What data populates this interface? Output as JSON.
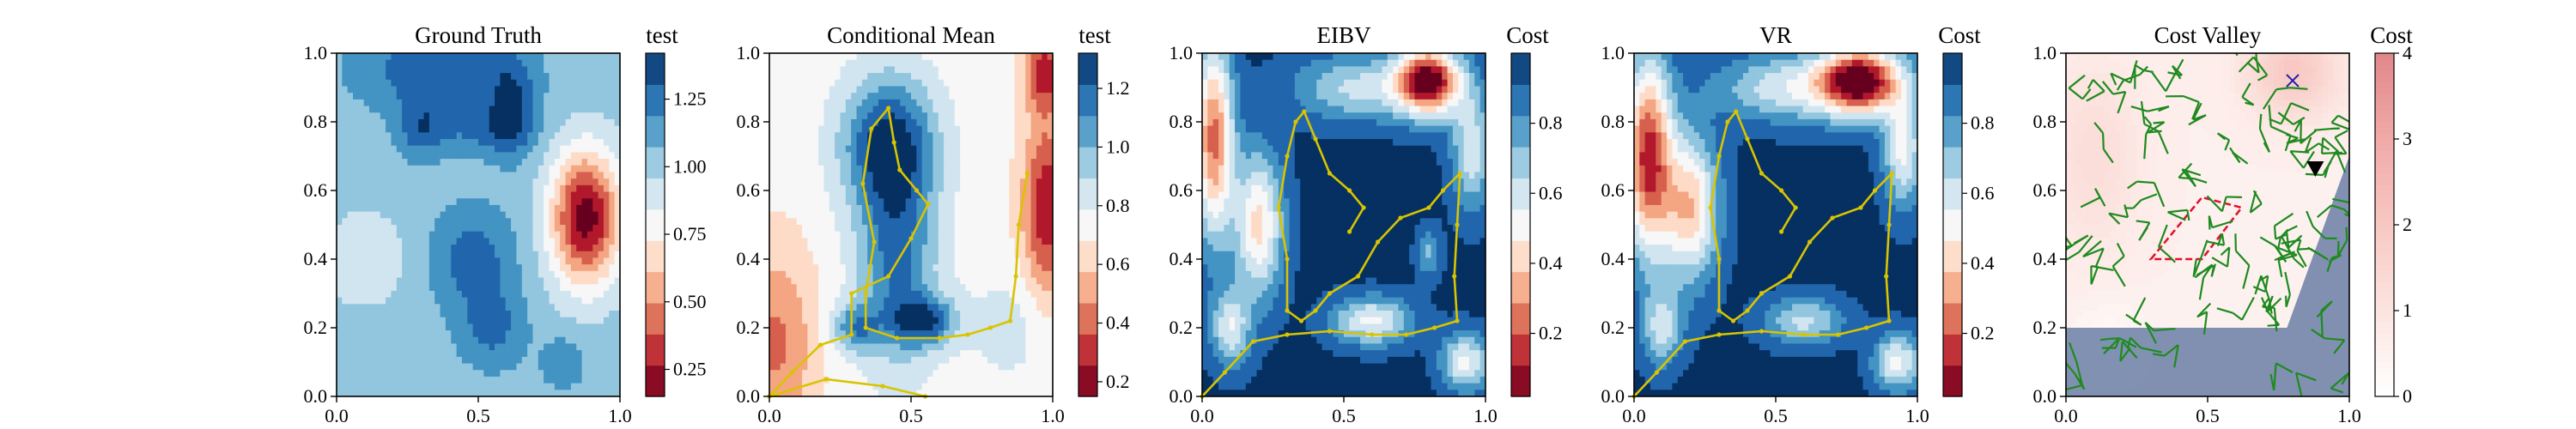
{
  "figure": {
    "panel_count": 5
  },
  "chart_data": [
    {
      "type": "heatmap",
      "title": "Ground Truth",
      "colorbar_label": "test",
      "colormap": "RdBu",
      "xlim": [
        0,
        1
      ],
      "ylim": [
        0,
        1
      ],
      "xticks": [
        "0.0",
        "0.5",
        "1.0"
      ],
      "yticks": [
        "0.0",
        "0.2",
        "0.4",
        "0.6",
        "0.8",
        "1.0"
      ],
      "colorbar_range": [
        0.15,
        1.42
      ],
      "colorbar_ticks": [
        "0.25",
        "0.50",
        "0.75",
        "1.00",
        "1.25"
      ],
      "colorbar_tick_values": [
        0.25,
        0.5,
        0.75,
        1.0,
        1.25
      ],
      "field": {
        "base": 1.05,
        "blobs": [
          {
            "cx": 0.88,
            "cy": 0.52,
            "sx": 0.09,
            "sy": 0.14,
            "amp": -0.9
          },
          {
            "cx": 0.35,
            "cy": 0.95,
            "sx": 0.18,
            "sy": 0.08,
            "amp": 0.3
          },
          {
            "cx": 0.62,
            "cy": 0.85,
            "sx": 0.06,
            "sy": 0.1,
            "amp": 0.3
          },
          {
            "cx": 0.48,
            "cy": 0.4,
            "sx": 0.1,
            "sy": 0.1,
            "amp": 0.25
          },
          {
            "cx": 0.1,
            "cy": 0.4,
            "sx": 0.1,
            "sy": 0.1,
            "amp": -0.2
          },
          {
            "cx": 0.3,
            "cy": 0.78,
            "sx": 0.06,
            "sy": 0.06,
            "amp": 0.25
          },
          {
            "cx": 0.52,
            "cy": 0.78,
            "sx": 0.12,
            "sy": 0.05,
            "amp": 0.2
          },
          {
            "cx": 0.55,
            "cy": 0.2,
            "sx": 0.08,
            "sy": 0.08,
            "amp": 0.22
          },
          {
            "cx": 0.8,
            "cy": 0.1,
            "sx": 0.05,
            "sy": 0.05,
            "amp": 0.18
          }
        ]
      },
      "paths": []
    },
    {
      "type": "heatmap",
      "title": "Conditional Mean",
      "colorbar_label": "test",
      "colormap": "RdBu",
      "xlim": [
        0,
        1
      ],
      "ylim": [
        0,
        1
      ],
      "xticks": [
        "0.0",
        "0.5",
        "1.0"
      ],
      "yticks": [
        "0.0",
        "0.2",
        "0.4",
        "0.6",
        "0.8",
        "1.0"
      ],
      "colorbar_range": [
        0.15,
        1.32
      ],
      "colorbar_ticks": [
        "0.2",
        "0.4",
        "0.6",
        "0.8",
        "1.0",
        "1.2"
      ],
      "colorbar_tick_values": [
        0.2,
        0.4,
        0.6,
        0.8,
        1.0,
        1.2
      ],
      "field": {
        "base": 0.72,
        "blobs": [
          {
            "cx": 0.42,
            "cy": 0.74,
            "sx": 0.12,
            "sy": 0.14,
            "amp": 0.55
          },
          {
            "cx": 0.45,
            "cy": 0.4,
            "sx": 0.1,
            "sy": 0.22,
            "amp": 0.45
          },
          {
            "cx": 0.55,
            "cy": 0.22,
            "sx": 0.08,
            "sy": 0.05,
            "amp": 0.45
          },
          {
            "cx": 0.3,
            "cy": 0.2,
            "sx": 0.06,
            "sy": 0.05,
            "amp": 0.35
          },
          {
            "cx": 0.98,
            "cy": 0.55,
            "sx": 0.06,
            "sy": 0.18,
            "amp": -0.5
          },
          {
            "cx": 0.97,
            "cy": 0.95,
            "sx": 0.05,
            "sy": 0.08,
            "amp": -0.45
          },
          {
            "cx": 0.02,
            "cy": 0.15,
            "sx": 0.1,
            "sy": 0.2,
            "amp": -0.3
          },
          {
            "cx": 0.85,
            "cy": 0.2,
            "sx": 0.12,
            "sy": 0.12,
            "amp": 0.12
          }
        ]
      },
      "paths": [
        [
          [
            0.0,
            0.0
          ],
          [
            0.08,
            0.07
          ],
          [
            0.18,
            0.15
          ],
          [
            0.29,
            0.18
          ],
          [
            0.29,
            0.3
          ],
          [
            0.42,
            0.35
          ],
          [
            0.5,
            0.46
          ],
          [
            0.56,
            0.56
          ],
          [
            0.52,
            0.6
          ],
          [
            0.46,
            0.66
          ],
          [
            0.44,
            0.74
          ],
          [
            0.42,
            0.84
          ],
          [
            0.36,
            0.78
          ],
          [
            0.33,
            0.62
          ],
          [
            0.37,
            0.45
          ],
          [
            0.34,
            0.3
          ],
          [
            0.34,
            0.2
          ],
          [
            0.45,
            0.17
          ],
          [
            0.6,
            0.17
          ],
          [
            0.7,
            0.18
          ],
          [
            0.78,
            0.2
          ],
          [
            0.85,
            0.22
          ],
          [
            0.87,
            0.35
          ],
          [
            0.88,
            0.5
          ],
          [
            0.91,
            0.65
          ]
        ],
        [
          [
            0.0,
            0.0
          ],
          [
            0.2,
            0.05
          ],
          [
            0.4,
            0.03
          ],
          [
            0.55,
            0.0
          ]
        ]
      ]
    },
    {
      "type": "heatmap",
      "title": "EIBV",
      "colorbar_label": "Cost",
      "colormap": "RdBu",
      "xlim": [
        0,
        1
      ],
      "ylim": [
        0,
        1
      ],
      "xticks": [
        "0.0",
        "0.5",
        "1.0"
      ],
      "yticks": [
        "0.0",
        "0.2",
        "0.4",
        "0.6",
        "0.8",
        "1.0"
      ],
      "colorbar_range": [
        0.02,
        1.0
      ],
      "colorbar_ticks": [
        "0.2",
        "0.4",
        "0.6",
        "0.8"
      ],
      "colorbar_tick_values": [
        0.2,
        0.4,
        0.6,
        0.8
      ],
      "field": {
        "base": 0.98,
        "blobs": [
          {
            "cx": 0.8,
            "cy": 0.92,
            "sx": 0.08,
            "sy": 0.07,
            "amp": -0.95
          },
          {
            "cx": 0.04,
            "cy": 0.75,
            "sx": 0.05,
            "sy": 0.2,
            "amp": -0.75
          },
          {
            "cx": 0.2,
            "cy": 0.5,
            "sx": 0.06,
            "sy": 0.15,
            "amp": -0.55
          },
          {
            "cx": 0.55,
            "cy": 0.9,
            "sx": 0.16,
            "sy": 0.07,
            "amp": -0.35
          },
          {
            "cx": 0.95,
            "cy": 0.72,
            "sx": 0.05,
            "sy": 0.12,
            "amp": -0.4
          },
          {
            "cx": 0.6,
            "cy": 0.22,
            "sx": 0.1,
            "sy": 0.05,
            "amp": -0.45
          },
          {
            "cx": 0.1,
            "cy": 0.2,
            "sx": 0.05,
            "sy": 0.08,
            "amp": -0.4
          },
          {
            "cx": 0.93,
            "cy": 0.1,
            "sx": 0.06,
            "sy": 0.06,
            "amp": -0.45
          },
          {
            "cx": 0.8,
            "cy": 0.42,
            "sx": 0.03,
            "sy": 0.05,
            "amp": -0.25
          }
        ]
      },
      "paths": [
        [
          [
            0.0,
            0.0
          ],
          [
            0.08,
            0.07
          ],
          [
            0.18,
            0.16
          ],
          [
            0.3,
            0.18
          ],
          [
            0.45,
            0.19
          ],
          [
            0.6,
            0.18
          ],
          [
            0.72,
            0.18
          ],
          [
            0.82,
            0.2
          ],
          [
            0.9,
            0.22
          ],
          [
            0.89,
            0.35
          ],
          [
            0.9,
            0.5
          ],
          [
            0.91,
            0.65
          ],
          [
            0.85,
            0.6
          ],
          [
            0.8,
            0.55
          ],
          [
            0.7,
            0.52
          ],
          [
            0.62,
            0.45
          ],
          [
            0.55,
            0.35
          ],
          [
            0.45,
            0.3
          ],
          [
            0.4,
            0.25
          ],
          [
            0.35,
            0.22
          ],
          [
            0.3,
            0.25
          ],
          [
            0.3,
            0.4
          ],
          [
            0.27,
            0.55
          ],
          [
            0.3,
            0.7
          ],
          [
            0.33,
            0.8
          ],
          [
            0.36,
            0.83
          ],
          [
            0.4,
            0.75
          ],
          [
            0.45,
            0.65
          ],
          [
            0.52,
            0.6
          ],
          [
            0.57,
            0.55
          ],
          [
            0.52,
            0.48
          ]
        ]
      ]
    },
    {
      "type": "heatmap",
      "title": "VR",
      "colorbar_label": "Cost",
      "colormap": "RdBu",
      "xlim": [
        0,
        1
      ],
      "ylim": [
        0,
        1
      ],
      "xticks": [
        "0.0",
        "0.5",
        "1.0"
      ],
      "yticks": [
        "0.0",
        "0.2",
        "0.4",
        "0.6",
        "0.8",
        "1.0"
      ],
      "colorbar_range": [
        0.02,
        1.0
      ],
      "colorbar_ticks": [
        "0.2",
        "0.4",
        "0.6",
        "0.8"
      ],
      "colorbar_tick_values": [
        0.2,
        0.4,
        0.6,
        0.8
      ],
      "field": {
        "base": 0.98,
        "blobs": [
          {
            "cx": 0.8,
            "cy": 0.92,
            "sx": 0.1,
            "sy": 0.07,
            "amp": -0.95
          },
          {
            "cx": 0.05,
            "cy": 0.7,
            "sx": 0.06,
            "sy": 0.2,
            "amp": -0.85
          },
          {
            "cx": 0.2,
            "cy": 0.55,
            "sx": 0.07,
            "sy": 0.15,
            "amp": -0.6
          },
          {
            "cx": 0.55,
            "cy": 0.9,
            "sx": 0.18,
            "sy": 0.07,
            "amp": -0.4
          },
          {
            "cx": 0.95,
            "cy": 0.72,
            "sx": 0.05,
            "sy": 0.12,
            "amp": -0.45
          },
          {
            "cx": 0.6,
            "cy": 0.22,
            "sx": 0.1,
            "sy": 0.05,
            "amp": -0.35
          },
          {
            "cx": 0.1,
            "cy": 0.2,
            "sx": 0.05,
            "sy": 0.08,
            "amp": -0.35
          },
          {
            "cx": 0.93,
            "cy": 0.1,
            "sx": 0.06,
            "sy": 0.06,
            "amp": -0.45
          }
        ]
      },
      "paths": [
        [
          [
            0.0,
            0.0
          ],
          [
            0.08,
            0.07
          ],
          [
            0.18,
            0.16
          ],
          [
            0.3,
            0.18
          ],
          [
            0.45,
            0.19
          ],
          [
            0.6,
            0.18
          ],
          [
            0.72,
            0.18
          ],
          [
            0.82,
            0.2
          ],
          [
            0.9,
            0.22
          ],
          [
            0.89,
            0.35
          ],
          [
            0.9,
            0.5
          ],
          [
            0.91,
            0.65
          ],
          [
            0.85,
            0.6
          ],
          [
            0.8,
            0.55
          ],
          [
            0.7,
            0.52
          ],
          [
            0.62,
            0.45
          ],
          [
            0.55,
            0.35
          ],
          [
            0.45,
            0.3
          ],
          [
            0.4,
            0.25
          ],
          [
            0.35,
            0.22
          ],
          [
            0.3,
            0.25
          ],
          [
            0.3,
            0.4
          ],
          [
            0.27,
            0.55
          ],
          [
            0.3,
            0.7
          ],
          [
            0.33,
            0.8
          ],
          [
            0.36,
            0.83
          ],
          [
            0.4,
            0.75
          ],
          [
            0.45,
            0.65
          ],
          [
            0.52,
            0.6
          ],
          [
            0.57,
            0.55
          ],
          [
            0.52,
            0.48
          ]
        ]
      ]
    },
    {
      "type": "heatmap",
      "title": "Cost Valley",
      "colorbar_label": "Cost",
      "colormap": "Reds",
      "xlim": [
        0,
        1
      ],
      "ylim": [
        0,
        1
      ],
      "xticks": [
        "0.0",
        "0.5",
        "1.0"
      ],
      "yticks": [
        "0.0",
        "0.2",
        "0.4",
        "0.6",
        "0.8",
        "1.0"
      ],
      "colorbar_range": [
        0,
        4
      ],
      "colorbar_ticks": [
        "0",
        "1",
        "2",
        "3",
        "4"
      ],
      "colorbar_tick_values": [
        0,
        1,
        2,
        3,
        4
      ],
      "field": {
        "base": 0.55,
        "blobs": [
          {
            "cx": 0.8,
            "cy": 0.95,
            "sx": 0.12,
            "sy": 0.1,
            "amp": 1.4
          },
          {
            "cx": 0.1,
            "cy": 0.7,
            "sx": 0.12,
            "sy": 0.2,
            "amp": 0.7
          },
          {
            "cx": 0.15,
            "cy": 0.15,
            "sx": 0.1,
            "sy": 0.1,
            "amp": -0.3
          }
        ]
      },
      "obstacle_line": {
        "start": [
          0.78,
          0.2
        ],
        "end": [
          1.0,
          0.7
        ]
      },
      "obstacle_color": "#6b7fa6",
      "red_polygon": [
        [
          0.3,
          0.4
        ],
        [
          0.48,
          0.58
        ],
        [
          0.62,
          0.55
        ],
        [
          0.48,
          0.4
        ]
      ],
      "red_color": "#e0102a",
      "tree_color": "#1f8a1f",
      "tree_seed": 11,
      "tree_count": 95,
      "markers": [
        {
          "symbol": "x",
          "x": 0.8,
          "y": 0.92,
          "color": "#2222aa"
        },
        {
          "symbol": "triangle-down",
          "x": 0.88,
          "y": 0.66,
          "color": "#000000"
        }
      ],
      "paths": []
    }
  ]
}
